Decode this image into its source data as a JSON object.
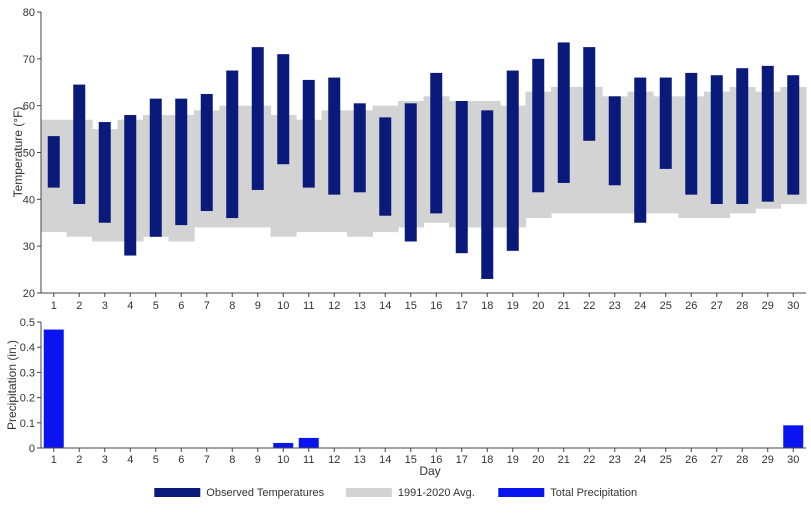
{
  "chart_data": [
    {
      "type": "bar",
      "subtype": "floating-range",
      "xlabel": "",
      "ylabel": "Temperature (°F)",
      "ylim": [
        20,
        80
      ],
      "yticks": [
        20,
        30,
        40,
        50,
        60,
        70,
        80
      ],
      "days": [
        1,
        2,
        3,
        4,
        5,
        6,
        7,
        8,
        9,
        10,
        11,
        12,
        13,
        14,
        15,
        16,
        17,
        18,
        19,
        20,
        21,
        22,
        23,
        24,
        25,
        26,
        27,
        28,
        29,
        30
      ],
      "series": [
        {
          "name": "Observed Temperatures",
          "color": "#0a1a7a",
          "low": [
            42.5,
            39,
            35,
            28,
            32,
            34.5,
            37.5,
            36,
            42,
            47.5,
            42.5,
            41,
            41.5,
            36.5,
            31,
            37,
            28.5,
            23,
            29,
            41.5,
            43.5,
            52.5,
            43,
            35,
            46.5,
            41,
            39,
            39,
            39.5,
            41
          ],
          "high": [
            53.5,
            64.5,
            56.5,
            58,
            61.5,
            61.5,
            62.5,
            67.5,
            72.5,
            71,
            65.5,
            66,
            60.5,
            57.5,
            60.5,
            67,
            61,
            59,
            67.5,
            70,
            73.5,
            72.5,
            62,
            66,
            66,
            67,
            66.5,
            68,
            68.5,
            66.5
          ]
        },
        {
          "name": "1991-2020 Avg.",
          "color": "#d3d3d3",
          "low": [
            33,
            32,
            31,
            31,
            32,
            31,
            34,
            34,
            34,
            32,
            33,
            33,
            32,
            33,
            34,
            35,
            34,
            34,
            34,
            36,
            37,
            37,
            37,
            37,
            37,
            36,
            36,
            37,
            38,
            39
          ],
          "high": [
            57,
            57,
            55,
            57,
            58,
            58,
            59,
            60,
            60,
            58,
            57,
            59,
            59,
            60,
            61,
            62,
            61,
            61,
            60,
            63,
            64,
            64,
            62,
            63,
            62,
            62,
            63,
            64,
            63,
            64
          ]
        }
      ],
      "grid": false
    },
    {
      "type": "bar",
      "xlabel": "Day",
      "ylabel": "Precipitation (in.)",
      "ylim": [
        0,
        0.5
      ],
      "yticks": [
        0,
        0.1,
        0.2,
        0.3,
        0.4,
        0.5
      ],
      "categories": [
        1,
        2,
        3,
        4,
        5,
        6,
        7,
        8,
        9,
        10,
        11,
        12,
        13,
        14,
        15,
        16,
        17,
        18,
        19,
        20,
        21,
        22,
        23,
        24,
        25,
        26,
        27,
        28,
        29,
        30
      ],
      "series": [
        {
          "name": "Total Precipitation",
          "color": "#0a14f0",
          "values": [
            0.47,
            0,
            0,
            0,
            0,
            0,
            0,
            0,
            0,
            0.02,
            0.04,
            0,
            0,
            0,
            0,
            0,
            0,
            0,
            0,
            0,
            0,
            0,
            0,
            0,
            0,
            0,
            0,
            0,
            0,
            0.09
          ]
        }
      ],
      "grid": false
    }
  ],
  "legend": {
    "placement": "bottom-center",
    "items": [
      {
        "label": "Observed Temperatures",
        "color": "#0a1a7a"
      },
      {
        "label": "1991-2020 Avg.",
        "color": "#d3d3d3"
      },
      {
        "label": "Total Precipitation",
        "color": "#0a14f0"
      }
    ]
  }
}
